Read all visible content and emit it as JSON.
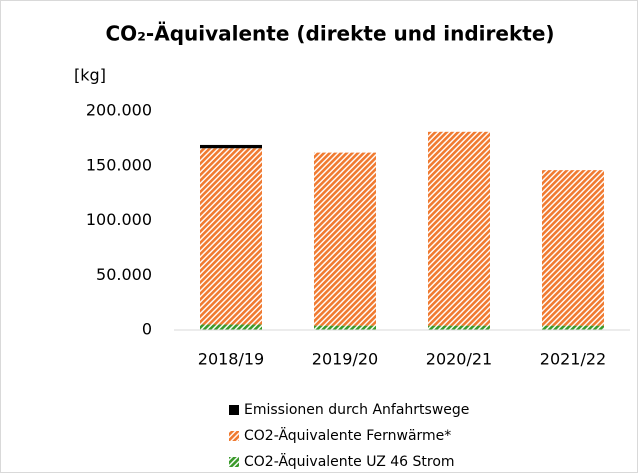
{
  "chart_data": {
    "type": "bar",
    "stacked": true,
    "title": "CO₂-Äquivalente (direkte und indirekte)",
    "y_label": "[kg]",
    "categories": [
      "2018/19",
      "2019/20",
      "2020/21",
      "2021/22"
    ],
    "series": [
      {
        "name": "CO2-Äquivalente UZ 46 Strom",
        "color": "#3a9a2a",
        "values": [
          5000,
          4000,
          4000,
          4000
        ]
      },
      {
        "name": "CO2-Äquivalente Fernwärme*",
        "color": "#f07a30",
        "values": [
          161000,
          158000,
          177000,
          142000
        ]
      },
      {
        "name": "Emissionen durch Anfahrtswege",
        "color": "#000000",
        "values": [
          3000,
          0,
          0,
          0
        ]
      }
    ],
    "ylim": [
      0,
      200000
    ],
    "yticks": [
      0,
      {
        "value": 50000,
        "label": "50.000"
      },
      {
        "value": 100000,
        "label": "100.000"
      },
      {
        "value": 150000,
        "label": "150.000"
      },
      {
        "value": 200000,
        "label": "200.000"
      }
    ],
    "grid": false,
    "legend": "bottom"
  }
}
